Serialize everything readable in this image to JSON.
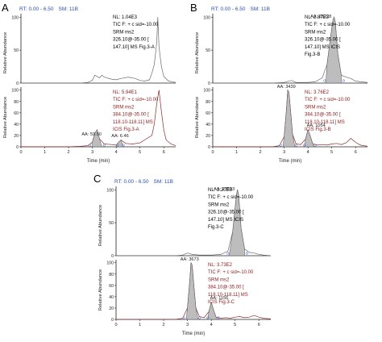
{
  "panels": [
    {
      "letter": "A",
      "header": {
        "rt": "RT: 0.00 - 6.50",
        "sm": "SM: 11B"
      },
      "ylabel": "Relative Abundance",
      "xlabel": "Time (min)",
      "xticks": [
        "0",
        "1",
        "2",
        "3",
        "4",
        "5",
        "6"
      ],
      "yticks_top": [
        "0",
        "50",
        "100"
      ],
      "yticks_bottom": [
        "0",
        "20",
        "40",
        "60",
        "80",
        "100"
      ],
      "top_info": [
        "NL: 1.04E3",
        "TIC F: + c sid=-10.00",
        "SRM ms2",
        "326.10@-35.00 [",
        "147.10]  MS  Fig.3-A"
      ],
      "bottom_info": [
        "NL: 5.94E1",
        "TIC F: + c sid=-10.00",
        " SRM ms2",
        "384.10@-35.00 [",
        "118.10-118.11]  MS",
        "ICIS Fig.3-A"
      ],
      "top_peaks": [],
      "bottom_peaks": [
        "AA: 59.90",
        "AA: 6.46"
      ]
    },
    {
      "letter": "B",
      "header": {
        "rt": "RT: 0.00 - 6.50",
        "sm": "SM: 11B"
      },
      "ylabel": "Relative Abundance",
      "xlabel": "Time (min)",
      "xticks": [
        "0",
        "1",
        "2",
        "3",
        "4",
        "5",
        "6"
      ],
      "yticks_top": [
        "0",
        "50",
        "100"
      ],
      "yticks_bottom": [
        "0",
        "20",
        "40",
        "60",
        "80",
        "100"
      ],
      "top_info": [
        "NL: 2.87E3",
        "TIC F: + c sid=-10.00",
        "SRM ms2",
        "326.10@-35.00 [",
        "147.10]  MS  ICIS",
        "Fig.3-B"
      ],
      "bottom_info": [
        "NL: 3.76E2",
        "TIC F: + c sid=-10.00",
        "SRM ms2",
        "384.10@-35.00 [",
        "118.10-118.11]  MS",
        "ICIS Fig.3-B"
      ],
      "top_peaks": [
        "AA: 25228"
      ],
      "bottom_peaks": [
        "AA: 3439",
        "AA: 1054"
      ]
    },
    {
      "letter": "C",
      "header": {
        "rt": "RT: 0.00 - 6.50",
        "sm": "SM: 11B"
      },
      "ylabel": "Relative Abundance",
      "xlabel": "Time (min)",
      "xticks": [
        "0",
        "1",
        "2",
        "3",
        "4",
        "5",
        "6"
      ],
      "yticks_top": [
        "0",
        "50",
        "100"
      ],
      "yticks_bottom": [
        "0",
        "20",
        "40",
        "60",
        "80",
        "100"
      ],
      "top_info": [
        "NL: 3.20E3",
        "TIC F: + c sid=-10.00",
        "SRM ms2",
        "326.10@-35.00 [",
        "147.10]  MS  ICIS",
        "Fig.3-C"
      ],
      "bottom_info": [
        "NL: 3.73E2",
        "TIC F: + c sid=-10.00",
        "SRM ms2",
        "384.10@-35.00 [",
        "118.10-118.11]  MS",
        "ICIS Fig.3-C"
      ],
      "top_peaks": [
        "AA: 27593"
      ],
      "bottom_peaks": [
        "AA: 3673",
        "AA: 1156"
      ]
    }
  ],
  "colors": {
    "top_trace": "#6b6b6b",
    "bottom_trace": "#8b2a2a",
    "top_info_text": "#000000",
    "bottom_info_text": "#8b1a1a",
    "header_rt": "#2a4fb5",
    "peak_fill": "#bdbdbd",
    "baseline_marker": "#3a5bd8"
  },
  "chart_data": [
    {
      "type": "line",
      "panel": "A",
      "xlim": [
        0,
        6.5
      ],
      "series": [
        {
          "x": [
            0,
            0.5,
            1.0,
            1.5,
            2.0,
            2.5,
            2.8,
            3.0,
            3.1,
            3.2,
            3.3,
            3.4,
            3.5,
            3.8,
            4.0,
            4.2,
            4.5,
            4.8,
            5.0,
            5.2,
            5.4,
            5.5,
            5.6,
            5.7,
            5.75,
            5.8,
            5.9,
            6.0,
            6.2,
            6.5
          ],
          "y": [
            0,
            0,
            0,
            0,
            0,
            0,
            1,
            4,
            12,
            10,
            8,
            12,
            9,
            6,
            5,
            7,
            9,
            7,
            4,
            3,
            5,
            15,
            28,
            60,
            100,
            55,
            25,
            10,
            3,
            1
          ]
        },
        {
          "x": [
            0,
            0.5,
            1.0,
            1.5,
            2.0,
            2.5,
            2.8,
            3.0,
            3.1,
            3.2,
            3.3,
            3.5,
            3.8,
            4.0,
            4.1,
            4.2,
            4.4,
            4.7,
            5.0,
            5.3,
            5.5,
            5.6,
            5.7,
            5.8,
            5.9,
            6.0,
            6.1,
            6.3,
            6.5
          ],
          "y": [
            0,
            0,
            0,
            0,
            0,
            1,
            2,
            8,
            24,
            30,
            14,
            5,
            4,
            3,
            8,
            12,
            6,
            5,
            7,
            15,
            20,
            40,
            75,
            100,
            62,
            30,
            12,
            5,
            2
          ]
        }
      ]
    },
    {
      "type": "line",
      "panel": "B",
      "xlim": [
        0,
        6.5
      ],
      "series": [
        {
          "x": [
            0,
            0.5,
            1.0,
            1.5,
            2.0,
            2.5,
            3.0,
            3.3,
            3.5,
            4.0,
            4.3,
            4.6,
            4.8,
            4.95,
            5.05,
            5.1,
            5.15,
            5.25,
            5.4,
            5.6,
            5.8,
            6.0,
            6.2,
            6.5
          ],
          "y": [
            0,
            0,
            0,
            0,
            0,
            0,
            1,
            4,
            1,
            1,
            2,
            8,
            28,
            70,
            96,
            100,
            92,
            45,
            12,
            9,
            7,
            3,
            2,
            1
          ]
        },
        {
          "x": [
            0,
            0.5,
            1.0,
            1.5,
            2.0,
            2.5,
            2.8,
            3.0,
            3.1,
            3.15,
            3.2,
            3.25,
            3.35,
            3.5,
            3.7,
            3.9,
            4.0,
            4.1,
            4.2,
            4.4,
            4.6,
            4.8,
            5.0,
            5.2,
            5.4,
            5.6,
            5.8,
            6.0,
            6.2,
            6.5
          ],
          "y": [
            0,
            0,
            0,
            0,
            0,
            0,
            2,
            18,
            68,
            100,
            96,
            72,
            22,
            5,
            4,
            14,
            30,
            18,
            5,
            3,
            4,
            3,
            5,
            6,
            4,
            7,
            15,
            8,
            3,
            1
          ]
        }
      ]
    },
    {
      "type": "line",
      "panel": "C",
      "xlim": [
        0,
        6.5
      ],
      "series": [
        {
          "x": [
            0,
            0.5,
            1.0,
            1.5,
            2.0,
            2.5,
            2.8,
            3.0,
            3.2,
            3.5,
            4.0,
            4.4,
            4.7,
            4.9,
            5.05,
            5.1,
            5.15,
            5.25,
            5.4,
            5.6,
            5.8,
            6.0,
            6.2,
            6.5
          ],
          "y": [
            0,
            0,
            0,
            0,
            0,
            0,
            1,
            4,
            2,
            1,
            1,
            2,
            7,
            36,
            90,
            100,
            92,
            42,
            10,
            5,
            4,
            2,
            1,
            0
          ]
        },
        {
          "x": [
            0,
            0.5,
            1.0,
            1.5,
            2.0,
            2.5,
            2.8,
            3.0,
            3.1,
            3.15,
            3.2,
            3.25,
            3.35,
            3.5,
            3.7,
            3.9,
            4.0,
            4.1,
            4.2,
            4.4,
            4.6,
            4.8,
            5.0,
            5.2,
            5.4,
            5.6,
            5.8,
            6.0,
            6.2,
            6.5
          ],
          "y": [
            0,
            0,
            0,
            0,
            0,
            0,
            2,
            20,
            70,
            100,
            95,
            68,
            20,
            5,
            3,
            14,
            30,
            16,
            4,
            2,
            3,
            2,
            4,
            5,
            3,
            4,
            7,
            4,
            2,
            1
          ]
        }
      ]
    }
  ]
}
